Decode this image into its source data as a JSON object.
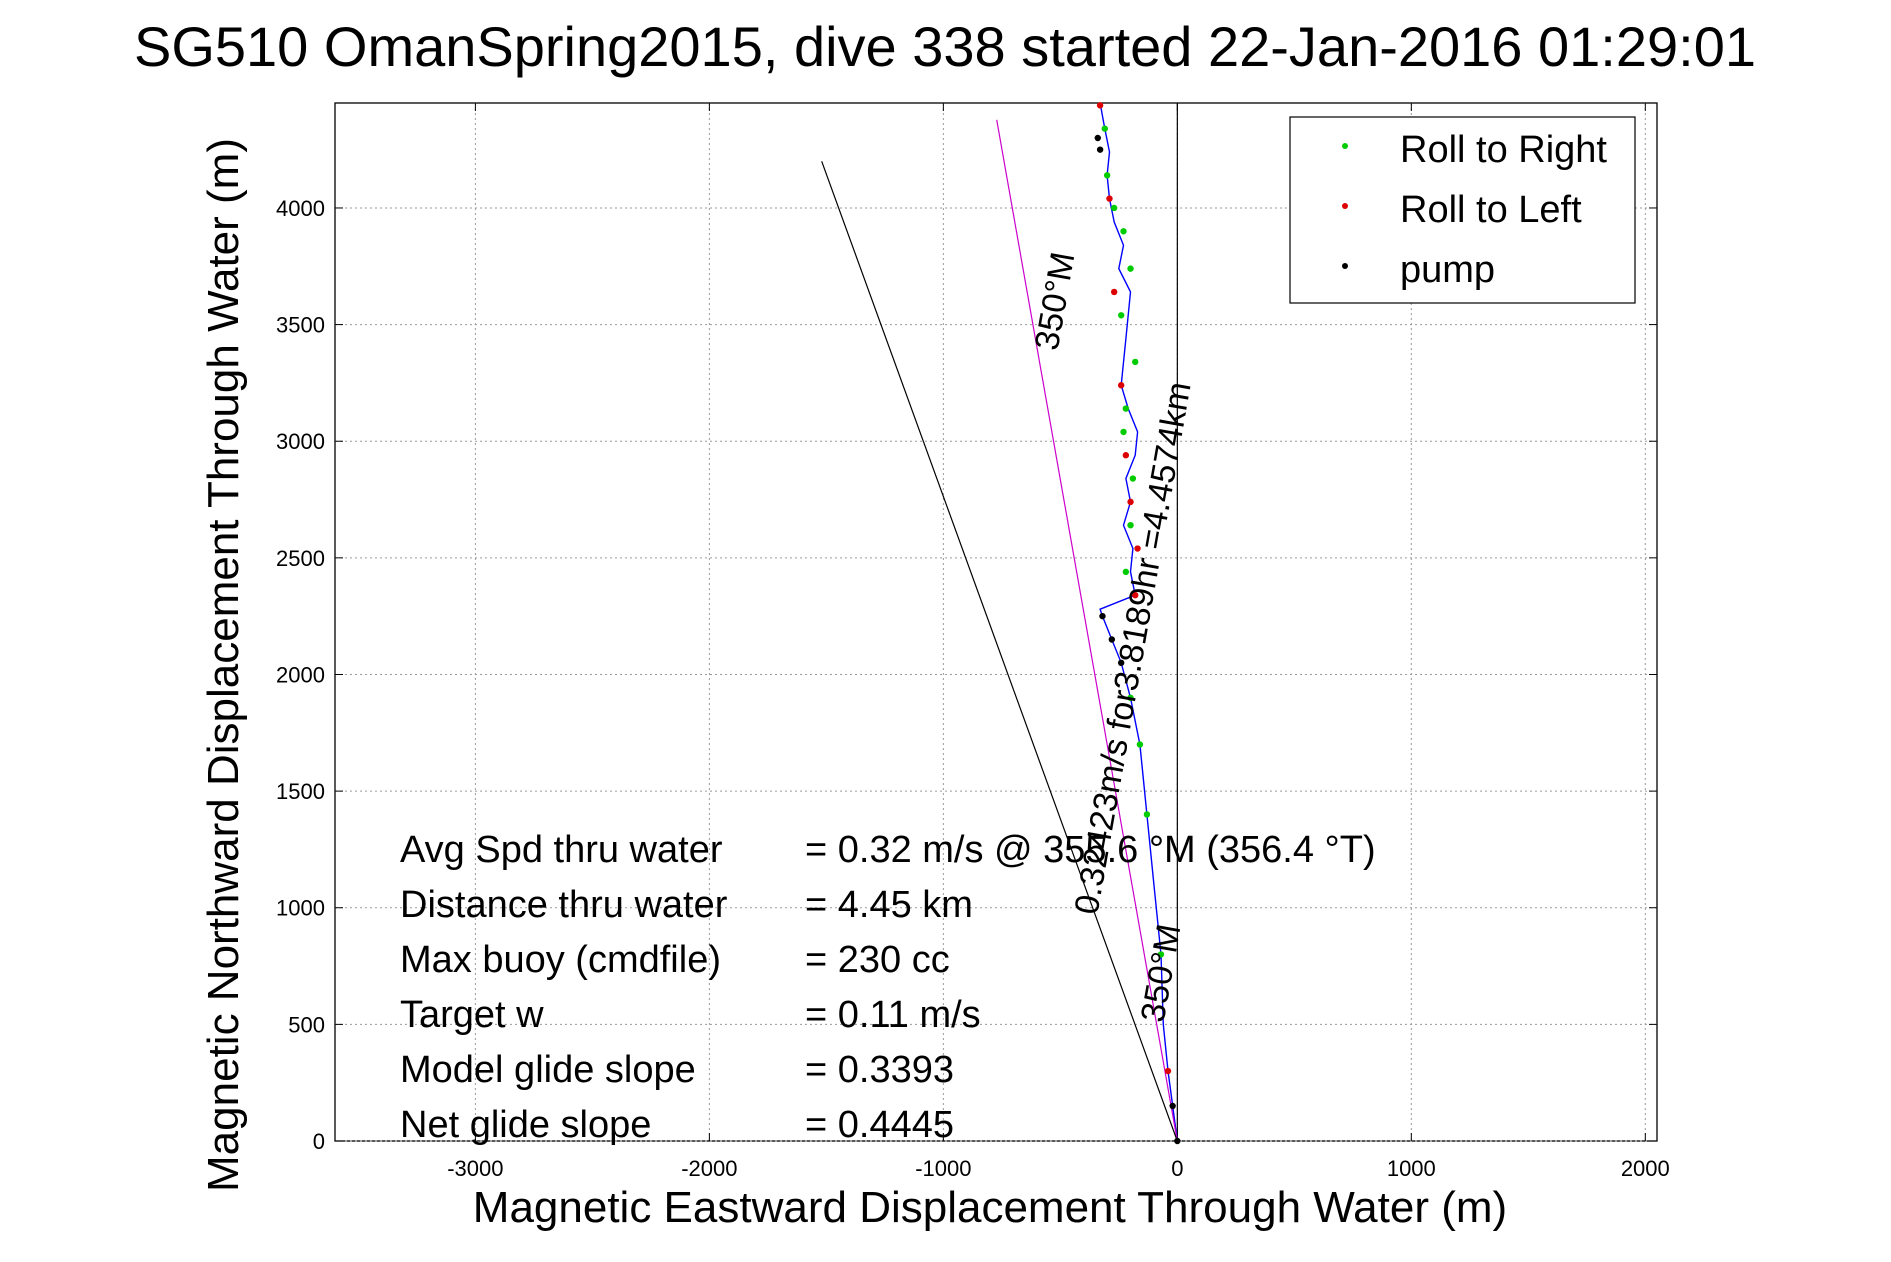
{
  "chart_data": {
    "type": "line",
    "title": "SG510 OmanSpring2015, dive 338 started 22-Jan-2016 01:29:01",
    "xlabel": "Magnetic Eastward Displacement Through Water (m)",
    "ylabel": "Magnetic Northward Displacement Through Water (m)",
    "xlim": [
      -3600,
      2050
    ],
    "ylim": [
      0,
      4450
    ],
    "xticks": [
      -3000,
      -2000,
      -1000,
      0,
      1000,
      2000
    ],
    "yticks": [
      0,
      500,
      1000,
      1500,
      2000,
      2500,
      3000,
      3500,
      4000
    ],
    "grid": true,
    "legend_position": "top-right",
    "legend": [
      {
        "label": "Roll to Right",
        "color": "#00cc00"
      },
      {
        "label": "Roll to Left",
        "color": "#dd0000"
      },
      {
        "label": "pump",
        "color": "#000000"
      }
    ],
    "series": [
      {
        "name": "track",
        "color": "#0000ff",
        "x": [
          0,
          -20,
          -40,
          -60,
          -70,
          -100,
          -130,
          -160,
          -200,
          -240,
          -280,
          -320,
          -330,
          -180,
          -200,
          -190,
          -230,
          -200,
          -220,
          -180,
          -170,
          -210,
          -240,
          -220,
          -200,
          -250,
          -230,
          -270,
          -290,
          -300,
          -290,
          -310,
          -330
        ],
        "y": [
          0,
          150,
          300,
          500,
          800,
          1100,
          1400,
          1700,
          1900,
          2050,
          2150,
          2250,
          2280,
          2340,
          2440,
          2540,
          2640,
          2740,
          2840,
          2940,
          3040,
          3140,
          3240,
          3440,
          3640,
          3740,
          3840,
          3940,
          4040,
          4140,
          4240,
          4340,
          4450
        ]
      },
      {
        "name": "350°M heading line",
        "color": "#cc00cc",
        "x": [
          0,
          -772
        ],
        "y": [
          0,
          4378
        ]
      },
      {
        "name": "reference line",
        "color": "#000000",
        "x": [
          0,
          -1520
        ],
        "y": [
          0,
          4200
        ]
      }
    ],
    "roll_right_points": {
      "x": [
        -70,
        -130,
        -160,
        -200,
        -220,
        -200,
        -190,
        -230,
        -220,
        -180,
        -240,
        -200,
        -230,
        -270,
        -300,
        -310
      ],
      "y": [
        800,
        1400,
        1700,
        1900,
        2440,
        2640,
        2840,
        3040,
        3140,
        3340,
        3540,
        3740,
        3900,
        4000,
        4140,
        4340
      ]
    },
    "roll_left_points": {
      "x": [
        -40,
        -180,
        -170,
        -200,
        -220,
        -240,
        -270,
        -290,
        -330
      ],
      "y": [
        300,
        2340,
        2540,
        2740,
        2940,
        3240,
        3640,
        4040,
        4440
      ]
    },
    "pump_points": {
      "x": [
        0,
        -20,
        -240,
        -280,
        -320,
        -330,
        -340
      ],
      "y": [
        0,
        150,
        2050,
        2150,
        2250,
        4250,
        4300
      ]
    },
    "annotations": {
      "heading_top": "350°M",
      "heading_bottom": "350°M",
      "track_label": "0.32423m/s for3.8189hr =4.4574km"
    },
    "stats": [
      {
        "label": "Avg Spd thru water",
        "value": "=  0.32 m/s @ 355.6 °M (356.4 °T)"
      },
      {
        "label": "Distance thru water",
        "value": "=  4.45 km"
      },
      {
        "label": "Max buoy (cmdfile)",
        "value": "= 230 cc"
      },
      {
        "label": "Target w",
        "value": "= 0.11 m/s"
      },
      {
        "label": "Model glide slope",
        "value": "= 0.3393"
      },
      {
        "label": "Net glide slope",
        "value": "= 0.4445"
      }
    ]
  }
}
